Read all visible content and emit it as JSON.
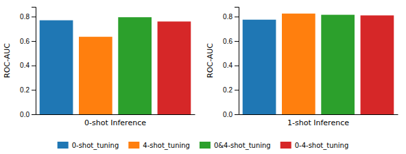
{
  "chart_data": {
    "type": "bar",
    "ylabel": "ROC-AUC",
    "categories": [
      "0-shot Inference",
      "1-shot Inference"
    ],
    "series": [
      {
        "name": "0-shot_tuning",
        "values": [
          0.77,
          0.775
        ]
      },
      {
        "name": "4-shot_tuning",
        "values": [
          0.635,
          0.825
        ]
      },
      {
        "name": "0&4-shot_tuning",
        "values": [
          0.795,
          0.815
        ]
      },
      {
        "name": "0-4-shot_tuning",
        "values": [
          0.76,
          0.81
        ]
      }
    ],
    "ylim": [
      0.0,
      0.88
    ],
    "yticks": [
      {
        "value": 0.0,
        "label": "0.0"
      },
      0.2,
      0.4,
      0.6,
      0.8
    ],
    "grid": false,
    "legend": "bottom"
  }
}
